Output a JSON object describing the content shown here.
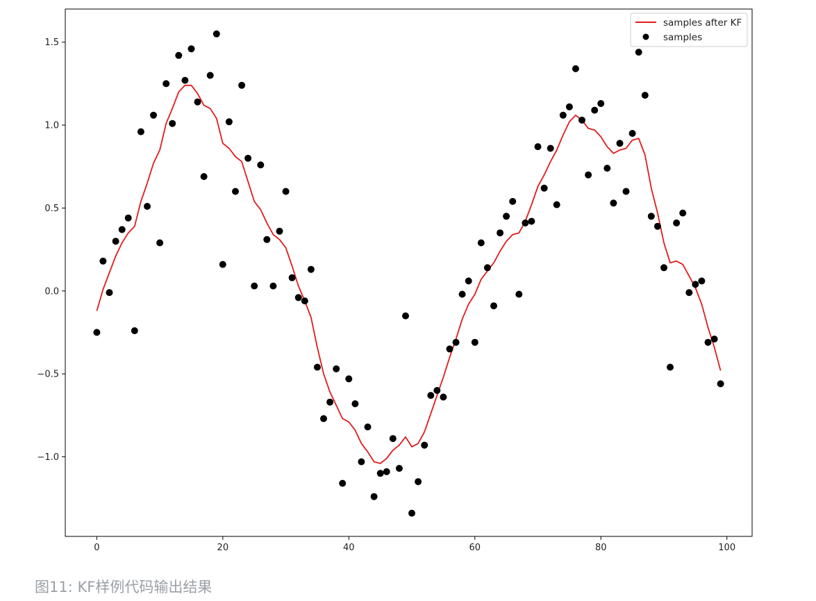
{
  "caption": "图11: KF样例代码输出结果",
  "chart_data": {
    "type": "scatter",
    "title": "",
    "xlabel": "",
    "ylabel": "",
    "xlim": [
      -5,
      104
    ],
    "ylim": [
      -1.48,
      1.7
    ],
    "xticks": [
      0,
      20,
      40,
      60,
      80,
      100
    ],
    "xtick_labels": [
      "0",
      "20",
      "40",
      "60",
      "80",
      "100"
    ],
    "yticks": [
      -1.0,
      -0.5,
      0.0,
      0.5,
      1.0,
      1.5
    ],
    "ytick_labels": [
      "−1.0",
      "−0.5",
      "0.0",
      "0.5",
      "1.0",
      "1.5"
    ],
    "grid": false,
    "legend_position": "top-right",
    "series": [
      {
        "name": "samples after KF",
        "kind": "line",
        "color": "#e31a1c",
        "x": [
          0,
          1,
          2,
          3,
          4,
          5,
          6,
          7,
          8,
          9,
          10,
          11,
          12,
          13,
          14,
          15,
          16,
          17,
          18,
          19,
          20,
          21,
          22,
          23,
          24,
          25,
          26,
          27,
          28,
          29,
          30,
          31,
          32,
          33,
          34,
          35,
          36,
          37,
          38,
          39,
          40,
          41,
          42,
          43,
          44,
          45,
          46,
          47,
          48,
          49,
          50,
          51,
          52,
          53,
          54,
          55,
          56,
          57,
          58,
          59,
          60,
          61,
          62,
          63,
          64,
          65,
          66,
          67,
          68,
          69,
          70,
          71,
          72,
          73,
          74,
          75,
          76,
          77,
          78,
          79,
          80,
          81,
          82,
          83,
          84,
          85,
          86,
          87,
          88,
          89,
          90,
          91,
          92,
          93,
          94,
          95,
          96,
          97,
          98,
          99
        ],
        "y": [
          -0.12,
          0.01,
          0.11,
          0.21,
          0.29,
          0.35,
          0.39,
          0.54,
          0.65,
          0.77,
          0.85,
          1.01,
          1.1,
          1.2,
          1.24,
          1.24,
          1.19,
          1.12,
          1.1,
          1.04,
          0.89,
          0.86,
          0.81,
          0.78,
          0.66,
          0.54,
          0.49,
          0.41,
          0.34,
          0.31,
          0.26,
          0.15,
          0.03,
          -0.06,
          -0.16,
          -0.34,
          -0.5,
          -0.61,
          -0.69,
          -0.77,
          -0.79,
          -0.84,
          -0.92,
          -0.97,
          -1.03,
          -1.04,
          -1.01,
          -0.96,
          -0.93,
          -0.88,
          -0.94,
          -0.92,
          -0.85,
          -0.74,
          -0.63,
          -0.52,
          -0.4,
          -0.29,
          -0.17,
          -0.08,
          -0.02,
          0.07,
          0.12,
          0.17,
          0.24,
          0.3,
          0.34,
          0.35,
          0.42,
          0.52,
          0.63,
          0.7,
          0.78,
          0.85,
          0.94,
          1.02,
          1.06,
          1.03,
          0.98,
          0.97,
          0.93,
          0.87,
          0.83,
          0.85,
          0.86,
          0.91,
          0.92,
          0.82,
          0.62,
          0.47,
          0.29,
          0.17,
          0.18,
          0.16,
          0.09,
          0.02,
          -0.08,
          -0.22,
          -0.34,
          -0.48
        ]
      },
      {
        "name": "samples",
        "kind": "scatter",
        "color": "#000000",
        "x": [
          0,
          1,
          2,
          3,
          4,
          5,
          6,
          7,
          8,
          9,
          10,
          11,
          12,
          13,
          14,
          15,
          16,
          17,
          18,
          19,
          20,
          21,
          22,
          23,
          24,
          25,
          26,
          27,
          28,
          29,
          30,
          31,
          32,
          33,
          34,
          35,
          36,
          37,
          38,
          39,
          40,
          41,
          42,
          43,
          44,
          45,
          46,
          47,
          48,
          49,
          50,
          51,
          52,
          53,
          54,
          55,
          56,
          57,
          58,
          59,
          60,
          61,
          62,
          63,
          64,
          65,
          66,
          67,
          68,
          69,
          70,
          71,
          72,
          73,
          74,
          75,
          76,
          77,
          78,
          79,
          80,
          81,
          82,
          83,
          84,
          85,
          86,
          87,
          88,
          89,
          90,
          91,
          92,
          93,
          94,
          95,
          96,
          97,
          98,
          99
        ],
        "y": [
          -0.25,
          0.18,
          -0.01,
          0.3,
          0.37,
          0.44,
          -0.24,
          0.96,
          0.51,
          1.06,
          0.29,
          1.25,
          1.01,
          1.42,
          1.27,
          1.46,
          1.14,
          0.69,
          1.3,
          1.55,
          0.16,
          1.02,
          0.6,
          1.24,
          0.8,
          0.03,
          0.76,
          0.31,
          0.03,
          0.36,
          0.6,
          0.08,
          -0.04,
          -0.06,
          0.13,
          -0.46,
          -0.77,
          -0.67,
          -0.47,
          -1.16,
          -0.53,
          -0.68,
          -1.03,
          -0.82,
          -1.24,
          -1.1,
          -1.09,
          -0.89,
          -1.07,
          -0.15,
          -1.34,
          -1.15,
          -0.93,
          -0.63,
          -0.6,
          -0.64,
          -0.35,
          -0.31,
          -0.02,
          0.06,
          -0.31,
          0.29,
          0.14,
          -0.09,
          0.35,
          0.45,
          0.54,
          -0.02,
          0.41,
          0.42,
          0.87,
          0.62,
          0.86,
          0.52,
          1.06,
          1.11,
          1.34,
          1.03,
          0.7,
          1.09,
          1.13,
          0.74,
          0.53,
          0.89,
          0.6,
          0.95,
          1.44,
          1.18,
          0.45,
          0.39,
          0.14,
          -0.46,
          0.41,
          0.47,
          -0.01,
          0.04,
          0.06,
          -0.31,
          -0.29,
          -0.56
        ]
      }
    ]
  }
}
